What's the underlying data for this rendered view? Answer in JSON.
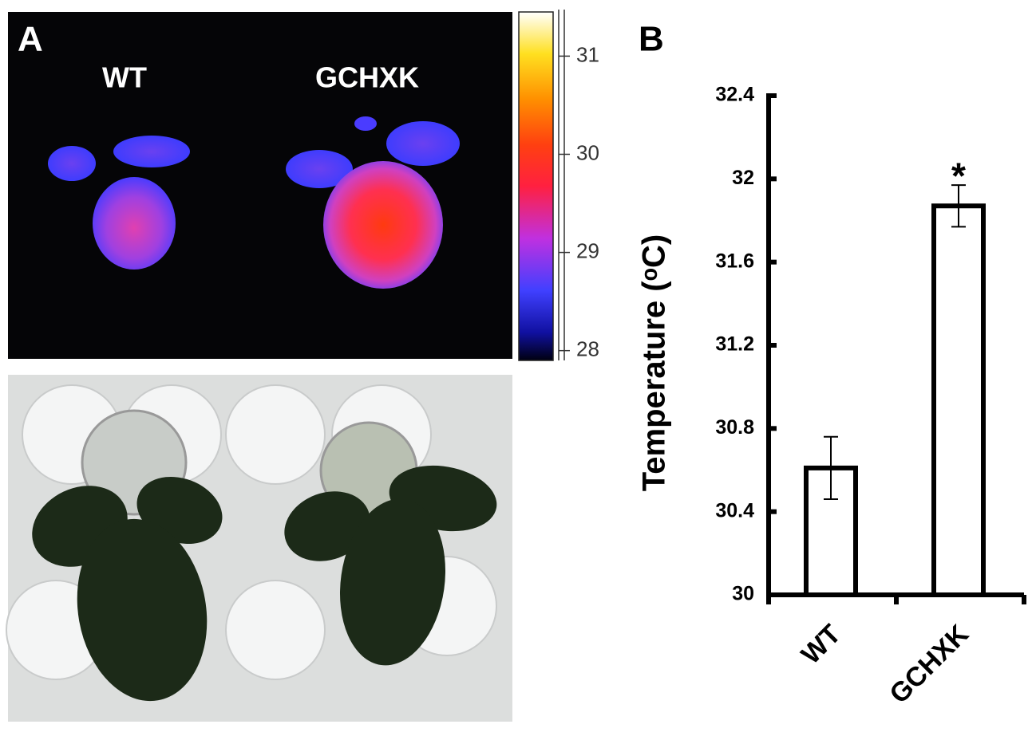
{
  "panel_a": {
    "label": "A",
    "labels": [
      "WT",
      "GCHXK"
    ],
    "colorbar": {
      "lim": [
        27.9,
        31.45
      ],
      "ticks": [
        28,
        29,
        30,
        31
      ]
    }
  },
  "chart_data": {
    "type": "bar",
    "panel_label": "B",
    "y_label": "Temperature (ᵒC)",
    "categories": [
      "WT",
      "GCHXK"
    ],
    "values": [
      30.61,
      31.87
    ],
    "errors": [
      0.15,
      0.1
    ],
    "annotations": [
      {
        "category": 1,
        "text": "*"
      }
    ],
    "color": "#ffffff",
    "ylim": [
      30,
      32.4
    ],
    "yticks": [
      30,
      30.4,
      30.8,
      31.2,
      31.6,
      32,
      32.4
    ]
  }
}
